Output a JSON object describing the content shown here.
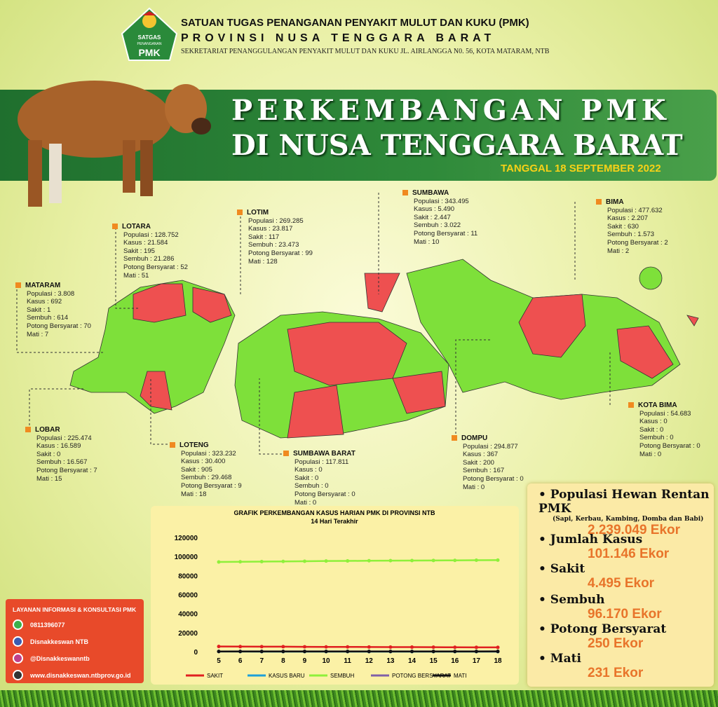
{
  "header": {
    "org": "SATUAN TUGAS PENANGANAN PENYAKIT MULUT DAN KUKU (PMK)",
    "province": "PROVINSI NUSA TENGGARA BARAT",
    "address": "SEKRETARIAT PENANGGULANGAN PENYAKIT MULUT DAN KUKU  JL. AIRLANGGA N0. 56, KOTA MATARAM, NTB",
    "logo_top": "SATGAS",
    "logo_mid": "PENANGANAN",
    "logo_bottom": "PMK"
  },
  "title": {
    "line1": "PERKEMBANGAN  PMK",
    "line2": "DI NUSA TENGGARA BARAT",
    "date": "TANGGAL 18 SEPTEMBER 2022"
  },
  "regions": [
    {
      "name": "MATARAM",
      "rows": [
        "Populasi : 3.808",
        "Kasus : 692",
        "Sakit : 1",
        "Sembuh : 614",
        "Potong Bersyarat : 70",
        "Mati : 7"
      ]
    },
    {
      "name": "LOTARA",
      "rows": [
        "Populasi : 128.752",
        "Kasus : 21.584",
        "Sakit : 195",
        "Sembuh : 21.286",
        "Potong Bersyarat : 52",
        "Mati : 51"
      ]
    },
    {
      "name": "LOTIM",
      "rows": [
        "Populasi : 269.285",
        "Kasus : 23.817",
        "Sakit : 117",
        "Sembuh : 23.473",
        "Potong Bersyarat : 99",
        "Mati : 128"
      ]
    },
    {
      "name": "SUMBAWA",
      "rows": [
        "Populasi : 343.495",
        "Kasus : 5.490",
        "Sakit : 2.447",
        "Sembuh : 3.022",
        "Potong Bersyarat : 11",
        "Mati : 10"
      ]
    },
    {
      "name": "BIMA",
      "rows": [
        "Populasi : 477.632",
        "Kasus : 2.207",
        "Sakit : 630",
        "Sembuh : 1.573",
        "Potong Bersyarat : 2",
        "Mati : 2"
      ]
    },
    {
      "name": "KOTA BIMA",
      "rows": [
        "Populasi : 54.683",
        "Kasus : 0",
        "Sakit : 0",
        "Sembuh : 0",
        "Potong Bersyarat : 0",
        "Mati : 0"
      ]
    },
    {
      "name": "DOMPU",
      "rows": [
        "Populasi : 294.877",
        "Kasus : 367",
        "Sakit : 200",
        "Sembuh : 167",
        "Potong Bersyarat : 0",
        "Mati : 0"
      ]
    },
    {
      "name": "SUMBAWA BARAT",
      "rows": [
        "Populasi : 117.811",
        "Kasus : 0",
        "Sakit : 0",
        "Sembuh : 0",
        "Potong Bersyarat : 0",
        "Mati : 0"
      ]
    },
    {
      "name": "LOTENG",
      "rows": [
        "Populasi : 323.232",
        "Kasus : 30.400",
        "Sakit : 905",
        "Sembuh : 29.468",
        "Potong Bersyarat : 9",
        "Mati : 18"
      ]
    },
    {
      "name": "LOBAR",
      "rows": [
        "Populasi : 225.474",
        "Kasus : 16.589",
        "Sakit : 0",
        "Sembuh : 16.567",
        "Potong Bersyarat : 7",
        "Mati : 15"
      ]
    }
  ],
  "summary": [
    {
      "label": "Populasi Hewan Rentan PMK",
      "note": "(Sapi, Kerbau, Kambing, Domba dan Babi)",
      "value": "2.239.049 Ekor"
    },
    {
      "label": "Jumlah Kasus",
      "value": "101.146 Ekor"
    },
    {
      "label": "Sakit",
      "value": "4.495 Ekor"
    },
    {
      "label": "Sembuh",
      "value": "96.170 Ekor"
    },
    {
      "label": "Potong Bersyarat",
      "value": "250 Ekor"
    },
    {
      "label": "Mati",
      "value": "231 Ekor"
    }
  ],
  "contact": {
    "title": "LAYANAN INFORMASI & KONSULTASI PMK",
    "items": [
      "0811396077",
      "Disnakkeswan NTB",
      "@Disnakkeswanntb",
      "www.disnakkeswan.ntbprov.go.id"
    ]
  },
  "chart_data": {
    "type": "line",
    "title": "GRAFIK PERKEMBANGAN KASUS HARIAN PMK DI PROVINSI NTB",
    "subtitle": "14 Hari Terakhir",
    "x": [
      5,
      6,
      7,
      8,
      9,
      10,
      11,
      12,
      13,
      14,
      15,
      16,
      17,
      18
    ],
    "xlim": [
      5,
      18
    ],
    "ylim": [
      0,
      120000
    ],
    "yticks": [
      0,
      20000,
      40000,
      60000,
      80000,
      100000,
      120000
    ],
    "series": [
      {
        "name": "SAKIT",
        "color": "#e02020",
        "values": [
          5400,
          5300,
          5250,
          5200,
          5100,
          5000,
          4950,
          4900,
          4800,
          4750,
          4700,
          4600,
          4550,
          4495
        ]
      },
      {
        "name": "KASUS BARU",
        "color": "#1ea0d8",
        "values": [
          60,
          50,
          45,
          40,
          40,
          35,
          30,
          30,
          25,
          25,
          20,
          20,
          20,
          15
        ]
      },
      {
        "name": "SEMBUH",
        "color": "#8ef03a",
        "values": [
          94200,
          94400,
          94600,
          94800,
          95000,
          95200,
          95300,
          95500,
          95600,
          95700,
          95800,
          95900,
          96050,
          96170
        ]
      },
      {
        "name": "POTONG BERSYARAT",
        "color": "#8060a8",
        "values": [
          230,
          232,
          234,
          236,
          238,
          240,
          241,
          242,
          243,
          244,
          246,
          247,
          248,
          250
        ]
      },
      {
        "name": "MATI",
        "color": "#111111",
        "values": [
          210,
          212,
          214,
          216,
          218,
          220,
          221,
          222,
          224,
          225,
          226,
          228,
          229,
          231
        ]
      }
    ]
  }
}
